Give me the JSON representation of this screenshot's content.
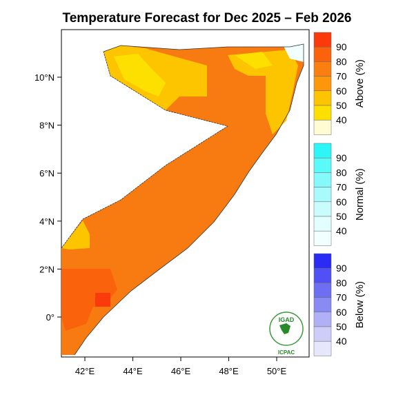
{
  "title": "Temperature Forecast for Dec 2025 – Feb 2026",
  "map": {
    "region": "Somalia",
    "lon_labels": [
      "42°E",
      "44°E",
      "46°E",
      "48°E",
      "50°E"
    ],
    "lat_labels": [
      "10°N",
      "8°N",
      "6°N",
      "4°N",
      "2°N",
      "0°"
    ],
    "dominant_category": "Above",
    "logo": {
      "top": "IGAD",
      "bottom": "ICPAC"
    }
  },
  "legends": [
    {
      "name": "Above (%)",
      "ticks": [
        "90",
        "80",
        "70",
        "60",
        "50",
        "40"
      ],
      "colors": [
        "#fb3a0c",
        "#fb620c",
        "#fb7e10",
        "#fd960a",
        "#fdc400",
        "#fde000",
        "#fffbd2"
      ]
    },
    {
      "name": "Normal (%)",
      "ticks": [
        "90",
        "80",
        "70",
        "60",
        "50",
        "40"
      ],
      "colors": [
        "#2ff6f6",
        "#5cf9f9",
        "#86fafa",
        "#a9fbfb",
        "#c9fcfc",
        "#e3fefe",
        "#f2ffff"
      ]
    },
    {
      "name": "Below (%)",
      "ticks": [
        "90",
        "80",
        "70",
        "60",
        "50",
        "40"
      ],
      "colors": [
        "#2b2bf6",
        "#5050f4",
        "#6e6ef3",
        "#8a8af3",
        "#b0b0f6",
        "#cdcdf8",
        "#e7e7fb"
      ]
    }
  ]
}
